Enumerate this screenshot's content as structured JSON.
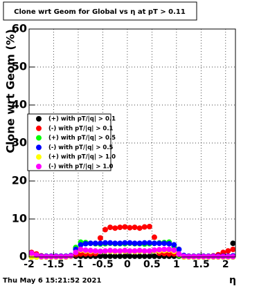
{
  "chart_data": {
    "type": "scatter",
    "title": "Clone wrt Geom for Global vs   η at pT > 0.11",
    "y_label": "Clone wrt Geom (%)",
    "x_label": "η",
    "footer": "Thu May  6 15:21:52 2021",
    "xlim": [
      -2,
      2.2
    ],
    "ylim": [
      0,
      60
    ],
    "xticks": [
      -2,
      -1.5,
      -1,
      -0.5,
      0,
      0.5,
      1,
      1.5,
      2
    ],
    "yticks": [
      0,
      10,
      20,
      30,
      40,
      50,
      60
    ],
    "grid": true,
    "legend": "left",
    "x": [
      -1.95,
      -1.85,
      -1.75,
      -1.65,
      -1.55,
      -1.45,
      -1.35,
      -1.25,
      -1.15,
      -1.05,
      -0.95,
      -0.85,
      -0.75,
      -0.65,
      -0.55,
      -0.45,
      -0.35,
      -0.25,
      -0.15,
      -0.05,
      0.05,
      0.15,
      0.25,
      0.35,
      0.45,
      0.55,
      0.65,
      0.75,
      0.85,
      0.95,
      1.05,
      1.15,
      1.25,
      1.35,
      1.45,
      1.55,
      1.65,
      1.75,
      1.85,
      1.95,
      2.05,
      2.15
    ],
    "series": [
      {
        "name": "(+) with pT/|q| > 0.1",
        "color": "#000000",
        "values": [
          0.2,
          0.2,
          0.2,
          0.2,
          0.2,
          0.2,
          0.2,
          0.2,
          0.2,
          0.2,
          0.2,
          0.2,
          0.2,
          0.2,
          0.2,
          0.2,
          0.2,
          0.2,
          0.2,
          0.2,
          0.2,
          0.2,
          0.2,
          0.2,
          0.2,
          0.2,
          0.2,
          0.2,
          0.2,
          0.2,
          0.2,
          0.2,
          0.2,
          0.2,
          0.2,
          0.2,
          0.2,
          0.2,
          0.2,
          0.2,
          0.2,
          3.6
        ]
      },
      {
        "name": "(-) with pT/|q| > 0.1",
        "color": "#ff0000",
        "values": [
          1.2,
          0.8,
          0.3,
          0.2,
          0.2,
          0.2,
          0.2,
          0.2,
          0.3,
          0.5,
          0.8,
          0.8,
          0.8,
          0.9,
          5,
          7.2,
          7.8,
          7.6,
          7.8,
          7.9,
          7.7,
          7.8,
          7.6,
          7.9,
          8,
          5.2,
          1,
          0.9,
          0.8,
          0.8,
          0.4,
          0.2,
          0.2,
          0.2,
          0.2,
          0.2,
          0.2,
          0.3,
          0.6,
          1.2,
          1.6,
          2
        ]
      },
      {
        "name": "(+) with pT/|q| > 0.5",
        "color": "#00ff00",
        "values": [
          0,
          0,
          0,
          0,
          0,
          0,
          0,
          0,
          0.3,
          2.5,
          3.9,
          3.8,
          3.6,
          3.5,
          3.4,
          3.5,
          3.6,
          3.5,
          3.5,
          3.5,
          3.6,
          3.5,
          3.5,
          3.4,
          3.5,
          3.6,
          3.7,
          3.8,
          3.9,
          2.8,
          0.3,
          0,
          0,
          0,
          0,
          0,
          0,
          0,
          0,
          0,
          0,
          0
        ]
      },
      {
        "name": "(-) with pT/|q| > 0.5",
        "color": "#0000ff",
        "values": [
          0.3,
          0.2,
          0.2,
          0.2,
          0.2,
          0.2,
          0.2,
          0.2,
          0.4,
          2,
          3.2,
          3.5,
          3.6,
          3.6,
          3.6,
          3.7,
          3.7,
          3.6,
          3.6,
          3.7,
          3.7,
          3.6,
          3.6,
          3.7,
          3.7,
          3.6,
          3.6,
          3.6,
          3.5,
          3.2,
          2,
          0.4,
          0.2,
          0.2,
          0.2,
          0.2,
          0.2,
          0.2,
          0.2,
          0.2,
          0.2,
          0.3
        ]
      },
      {
        "name": "(+) with pT/|q| > 1.0",
        "color": "#ffff00",
        "values": [
          0,
          0,
          0,
          0,
          0,
          0,
          0,
          0,
          0.2,
          1.2,
          1.8,
          1.6,
          1.5,
          1.5,
          1.4,
          1.5,
          1.5,
          1.4,
          1.5,
          1.5,
          1.5,
          1.4,
          1.5,
          1.5,
          1.5,
          1.6,
          1.6,
          1.7,
          1.8,
          1.5,
          0.5,
          0,
          0,
          0,
          0,
          0,
          0,
          0,
          0,
          0,
          0,
          0
        ]
      },
      {
        "name": "(-) with pT/|q| > 1.0",
        "color": "#ff00ff",
        "values": [
          1,
          0.5,
          0.1,
          0.1,
          0.1,
          0.1,
          0.1,
          0.1,
          0.3,
          1.2,
          2,
          1.8,
          1.7,
          1.6,
          1.5,
          1.6,
          1.7,
          1.6,
          1.6,
          1.7,
          1.6,
          1.6,
          1.7,
          1.6,
          1.6,
          1.8,
          1.9,
          2,
          2,
          1.8,
          0.8,
          0.2,
          0.1,
          0.1,
          0.1,
          0.1,
          0.1,
          0.1,
          0.1,
          0.1,
          0.1,
          0.1
        ]
      }
    ]
  }
}
